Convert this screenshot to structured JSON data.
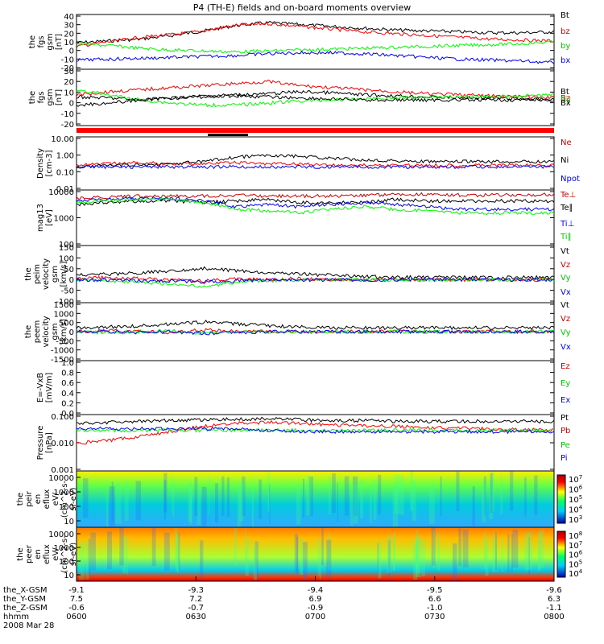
{
  "title": "P4 (TH-E) fields and on-board moments overview",
  "colors": {
    "black": "#000000",
    "red": "#ff0000",
    "green": "#00ff00",
    "blue": "#0000ff",
    "darkred": "#cc0000",
    "greenlabel": "#00cc00"
  },
  "chart_data": [
    {
      "type": "line",
      "ylabel": [
        "the",
        "fgs",
        "gsm",
        "[nT]"
      ],
      "yticks": [
        "40",
        "30",
        "20",
        "10",
        "0",
        "-10",
        "-20"
      ],
      "ylim": [
        -20,
        40
      ],
      "series": [
        {
          "name": "Bt",
          "color": "black",
          "values": [
            9,
            11,
            13,
            17,
            22,
            28,
            31,
            29,
            27,
            25,
            23,
            22,
            21,
            20,
            20,
            21
          ]
        },
        {
          "name": "bz",
          "color": "red",
          "values": [
            5,
            10,
            15,
            18,
            22,
            28,
            30,
            27,
            24,
            21,
            19,
            17,
            15,
            13,
            12,
            11
          ]
        },
        {
          "name": "by",
          "color": "green",
          "values": [
            8,
            6,
            3,
            1,
            0,
            -1,
            0,
            1,
            2,
            3,
            4,
            5,
            6,
            7,
            8,
            10
          ]
        },
        {
          "name": "bx",
          "color": "blue",
          "values": [
            -10,
            -9,
            -8,
            -7,
            -6,
            -5,
            -3,
            -2,
            -2,
            -3,
            -5,
            -7,
            -9,
            -10,
            -11,
            -13
          ]
        }
      ]
    },
    {
      "type": "line",
      "ylabel": [
        "the",
        "fgs",
        "gsm",
        "[nT]"
      ],
      "yticks": [
        "30",
        "20",
        "10",
        "0",
        "-10",
        "-20"
      ],
      "ylim": [
        -25,
        30
      ],
      "series": [
        {
          "name": "Bt",
          "color": "black",
          "values": [
            3,
            2,
            0,
            2,
            4,
            5,
            6,
            8,
            7,
            5,
            4,
            3,
            2,
            2,
            1,
            0
          ]
        },
        {
          "name": "Bz",
          "color": "red",
          "values": [
            5,
            8,
            10,
            12,
            14,
            16,
            18,
            14,
            12,
            10,
            8,
            6,
            5,
            4,
            3,
            2
          ]
        },
        {
          "name": "By",
          "color": "green",
          "values": [
            10,
            5,
            0,
            -3,
            -5,
            -5,
            -3,
            -1,
            0,
            1,
            2,
            3,
            3,
            3,
            4,
            5
          ]
        },
        {
          "name": "Bx",
          "color": "black",
          "values": [
            -5,
            -3,
            0,
            2,
            3,
            4,
            3,
            2,
            1,
            0,
            0,
            0,
            0,
            0,
            0,
            0
          ]
        }
      ]
    },
    {
      "type": "line",
      "log": true,
      "ylabel": [
        "Density",
        "[cm-3]"
      ],
      "yticks": [
        "10.00",
        "1.00",
        "0.10",
        "0.01"
      ],
      "ylim": [
        0.01,
        10
      ],
      "series": [
        {
          "name": "Ne",
          "color": "red",
          "values": [
            0.25,
            0.3,
            0.35,
            0.3,
            0.3,
            0.35,
            0.3,
            0.3,
            0.25,
            0.25,
            0.25,
            0.25,
            0.25,
            0.25,
            0.25,
            0.25
          ]
        },
        {
          "name": "Ni",
          "color": "black",
          "values": [
            0.2,
            0.25,
            0.25,
            0.3,
            0.4,
            0.7,
            0.9,
            0.8,
            0.6,
            0.5,
            0.45,
            0.4,
            0.4,
            0.4,
            0.4,
            0.4
          ]
        },
        {
          "name": "Npot",
          "color": "blue",
          "values": [
            0.2,
            0.2,
            0.2,
            0.2,
            0.2,
            0.2,
            0.2,
            0.2,
            0.2,
            0.2,
            0.2,
            0.2,
            0.2,
            0.2,
            0.2,
            0.2
          ]
        }
      ]
    },
    {
      "type": "line",
      "log": true,
      "ylabel": [
        "mag13",
        "[eV]"
      ],
      "yticks": [
        "10000",
        "1000",
        "100"
      ],
      "ylim": [
        100,
        10000
      ],
      "series": [
        {
          "name": "Te⊥",
          "color": "darkred",
          "values": [
            5000,
            5500,
            6000,
            6000,
            6000,
            6500,
            6000,
            6000,
            6000,
            6500,
            7000,
            7000,
            6500,
            6500,
            6500,
            7000
          ]
        },
        {
          "name": "Te∥",
          "color": "black",
          "values": [
            3000,
            3500,
            4000,
            4000,
            3500,
            4000,
            4500,
            3500,
            3500,
            3500,
            4500,
            4000,
            4000,
            4000,
            4000,
            4000
          ]
        },
        {
          "name": "Ti⊥",
          "color": "blue",
          "values": [
            4000,
            4500,
            5000,
            5000,
            4000,
            2500,
            3000,
            2500,
            3000,
            3500,
            3000,
            2500,
            2000,
            2000,
            2000,
            2000
          ]
        },
        {
          "name": "Ti∥",
          "color": "green",
          "values": [
            3500,
            4000,
            4500,
            4500,
            3500,
            2000,
            1800,
            1500,
            2000,
            2500,
            2000,
            1800,
            1500,
            1500,
            1500,
            1500
          ]
        }
      ]
    },
    {
      "type": "line",
      "ylabel": [
        "the",
        "peim",
        "velocity",
        "gsm",
        "[km/s]"
      ],
      "yticks": [
        "150",
        "100",
        "50",
        "0",
        "-50",
        "-100"
      ],
      "ylim": [
        -100,
        150
      ],
      "series": [
        {
          "name": "Vt",
          "color": "black",
          "values": [
            20,
            25,
            30,
            40,
            50,
            40,
            30,
            25,
            20,
            15,
            12,
            10,
            10,
            10,
            10,
            10
          ]
        },
        {
          "name": "Vz",
          "color": "red",
          "values": [
            5,
            10,
            5,
            0,
            -5,
            5,
            0,
            5,
            0,
            0,
            0,
            0,
            0,
            0,
            0,
            0
          ]
        },
        {
          "name": "Vy",
          "color": "green",
          "values": [
            0,
            -5,
            -10,
            -20,
            -30,
            -10,
            -5,
            0,
            0,
            0,
            0,
            0,
            0,
            0,
            0,
            0
          ]
        },
        {
          "name": "Vx",
          "color": "blue",
          "values": [
            0,
            0,
            -5,
            -5,
            -10,
            -5,
            0,
            0,
            0,
            0,
            0,
            0,
            0,
            0,
            0,
            0
          ]
        }
      ]
    },
    {
      "type": "line",
      "ylabel": [
        "the",
        "peem",
        "velocity",
        "gsm",
        "[km/s]"
      ],
      "yticks": [
        "1500",
        "1000",
        "500",
        "0",
        "-500",
        "-1000",
        "-1500"
      ],
      "ylim": [
        -1500,
        1500
      ],
      "series": [
        {
          "name": "Vt",
          "color": "black",
          "values": [
            200,
            250,
            300,
            400,
            500,
            400,
            300,
            250,
            200,
            200,
            200,
            200,
            200,
            200,
            200,
            200
          ]
        },
        {
          "name": "Vz",
          "color": "red",
          "values": [
            0,
            50,
            0,
            -50,
            100,
            0,
            0,
            0,
            0,
            0,
            0,
            0,
            0,
            0,
            0,
            0
          ]
        },
        {
          "name": "Vy",
          "color": "green",
          "values": [
            0,
            -50,
            0,
            50,
            -100,
            0,
            0,
            0,
            0,
            0,
            0,
            0,
            0,
            0,
            0,
            0
          ]
        },
        {
          "name": "Vx",
          "color": "blue",
          "values": [
            0,
            0,
            -50,
            0,
            -100,
            -50,
            0,
            0,
            0,
            0,
            0,
            0,
            0,
            0,
            0,
            0
          ]
        }
      ]
    },
    {
      "type": "line",
      "ylabel": [
        "E=-VxB",
        "[mV/m]"
      ],
      "yticks": [
        "1.0",
        "0.8",
        "0.6",
        "0.4",
        "0.2",
        "0.0"
      ],
      "ylim": [
        0,
        1
      ],
      "series": [
        {
          "name": "Ez",
          "color": "red",
          "values": []
        },
        {
          "name": "Ey",
          "color": "green",
          "values": []
        },
        {
          "name": "Ex",
          "color": "blue",
          "values": []
        }
      ]
    },
    {
      "type": "line",
      "log": true,
      "ylabel": [
        "Pressure",
        "[nPa]"
      ],
      "yticks": [
        "0.100",
        "0.010",
        "0.001"
      ],
      "ylim": [
        0.0005,
        1
      ],
      "series": [
        {
          "name": "Pt",
          "color": "black",
          "values": [
            0.3,
            0.35,
            0.4,
            0.45,
            0.5,
            0.55,
            0.55,
            0.5,
            0.45,
            0.45,
            0.4,
            0.4,
            0.4,
            0.4,
            0.4,
            0.4
          ]
        },
        {
          "name": "Pb",
          "color": "red",
          "values": [
            0.02,
            0.03,
            0.05,
            0.1,
            0.2,
            0.3,
            0.35,
            0.3,
            0.25,
            0.22,
            0.2,
            0.18,
            0.16,
            0.14,
            0.13,
            0.12
          ]
        },
        {
          "name": "Pe",
          "color": "green",
          "values": [
            0.12,
            0.12,
            0.12,
            0.12,
            0.12,
            0.12,
            0.12,
            0.12,
            0.12,
            0.12,
            0.12,
            0.12,
            0.12,
            0.12,
            0.12,
            0.12
          ]
        },
        {
          "name": "Pi",
          "color": "blue",
          "values": [
            0.15,
            0.15,
            0.15,
            0.15,
            0.15,
            0.14,
            0.12,
            0.1,
            0.1,
            0.1,
            0.1,
            0.1,
            0.1,
            0.1,
            0.1,
            0.1
          ]
        }
      ]
    },
    {
      "type": "heatmap",
      "ylabel": [
        "the",
        "peir",
        "en",
        "eflux",
        "eV/",
        "(cm^2-s-",
        "sr-eV)"
      ],
      "yticks": [
        "10000",
        "1000",
        "100",
        "10"
      ],
      "colorbar": {
        "ticks": [
          "10^7",
          "10^6",
          "10^5",
          "10^4",
          "10^3"
        ]
      }
    },
    {
      "type": "heatmap",
      "ylabel": [
        "the",
        "peer",
        "en",
        "eflux",
        "eV/",
        "(cm^2-s-",
        "sr-eV)"
      ],
      "yticks": [
        "10000",
        "1000",
        "100",
        "10"
      ],
      "colorbar": {
        "ticks": [
          "10^8",
          "10^7",
          "10^6",
          "10^5",
          "10^4"
        ]
      }
    }
  ],
  "xaxis": {
    "rows": [
      {
        "label": "the_X-GSM",
        "values": [
          "-9.1",
          "-9.3",
          "-9.4",
          "-9.5",
          "-9.6"
        ]
      },
      {
        "label": "the_Y-GSM",
        "values": [
          "7.5",
          "7.2",
          "6.9",
          "6.6",
          "6.3"
        ]
      },
      {
        "label": "the_Z-GSM",
        "values": [
          "-0.6",
          "-0.7",
          "-0.9",
          "-1.0",
          "-1.1"
        ]
      },
      {
        "label": "hhmm",
        "values": [
          "0600",
          "0630",
          "0700",
          "0730",
          "0800"
        ]
      }
    ],
    "date": "2008 Mar 28"
  }
}
